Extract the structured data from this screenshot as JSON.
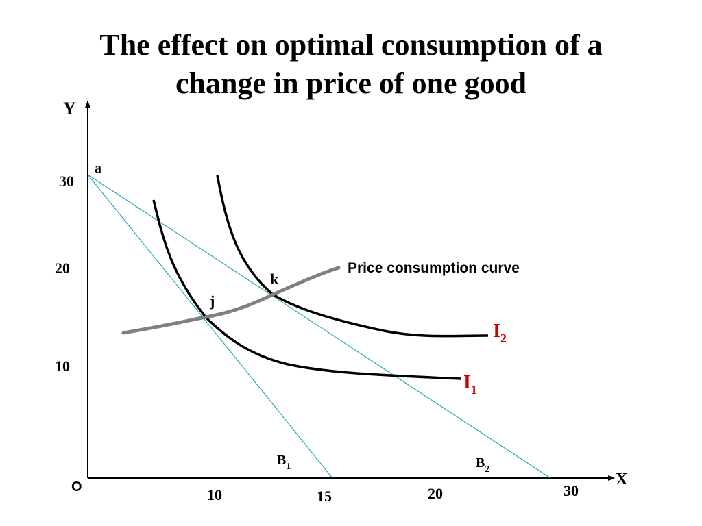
{
  "title": {
    "line1": "The effect on optimal consumption of a",
    "line2": "change in price of one good"
  },
  "axes": {
    "y_label": "Y",
    "x_label": "X",
    "origin_label": "O",
    "y_ticks": [
      "30",
      "20",
      "10"
    ],
    "x_ticks": [
      "10",
      "15",
      "20",
      "30"
    ]
  },
  "points": {
    "a": "a",
    "j": "j",
    "k": "k"
  },
  "budget_lines": {
    "b1_main": "B",
    "b1_sub": "1",
    "b2_main": "B",
    "b2_sub": "2"
  },
  "indifference_curves": {
    "i1_main": "I",
    "i1_sub": "1",
    "i2_main": "I",
    "i2_sub": "2"
  },
  "pcc_label": "Price consumption curve",
  "colors": {
    "budget_line": "#2aa7b3",
    "indifference_curve": "#000000",
    "pcc": "#808080",
    "curve_label": "#cc0000"
  }
}
